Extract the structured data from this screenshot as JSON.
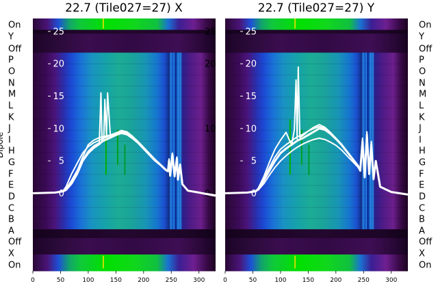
{
  "chart_data": [
    {
      "type": "heatmap",
      "title": "22.7 (Tile027=27) X",
      "ylabel": "Dipole",
      "xlim": [
        0,
        330
      ],
      "ylim": [
        -12,
        27
      ],
      "row_labels": [
        "On",
        "Y",
        "Off",
        "P",
        "O",
        "N",
        "M",
        "L",
        "K",
        "J",
        "I",
        "H",
        "G",
        "F",
        "E",
        "D",
        "C",
        "B",
        "A",
        "Off",
        "X",
        "On"
      ],
      "x_ticks": [
        0,
        50,
        100,
        150,
        200,
        250,
        300
      ],
      "y_ticks": [
        0,
        5,
        10,
        15,
        20,
        25
      ],
      "lines": [
        {
          "x": [
            0,
            40,
            55,
            60,
            70,
            80,
            90,
            100,
            110,
            120,
            125,
            130,
            140,
            150,
            160,
            170,
            180,
            190,
            200,
            210,
            220,
            230,
            240,
            244,
            246,
            248,
            252,
            256,
            260,
            262,
            266,
            270,
            280,
            300,
            330
          ],
          "y": [
            0,
            0.1,
            0.3,
            0.5,
            1.5,
            3,
            5,
            6.2,
            7,
            7.6,
            8,
            8.2,
            8.6,
            9,
            9.3,
            9.1,
            8.5,
            7.8,
            6.9,
            6,
            5.1,
            4.4,
            3.6,
            3.4,
            5,
            2.7,
            6,
            2.6,
            5.4,
            2.1,
            4.4,
            1.4,
            0.4,
            0.1,
            -0.4
          ]
        },
        {
          "x": [
            0,
            40,
            55,
            60,
            70,
            80,
            90,
            100,
            110,
            120,
            123,
            125,
            128,
            130,
            133,
            135,
            140,
            150,
            160,
            170,
            180,
            190,
            200,
            210,
            220,
            230,
            240,
            244,
            246,
            248,
            252,
            256,
            260,
            262,
            266,
            270,
            280,
            300,
            330
          ],
          "y": [
            0,
            0.1,
            0.3,
            0.7,
            2,
            3.5,
            5.2,
            6.5,
            7.3,
            7.8,
            15.5,
            8,
            8.2,
            14.5,
            8.6,
            15.5,
            8.8,
            9.1,
            9.5,
            9.3,
            8.6,
            7.9,
            7,
            6.1,
            5.2,
            4.4,
            3.6,
            3.4,
            5.3,
            2.8,
            6.2,
            2.6,
            5.6,
            2.1,
            4.5,
            1.4,
            0.4,
            0.1,
            -0.3
          ]
        },
        {
          "x": [
            0,
            40,
            55,
            60,
            70,
            80,
            90,
            100,
            110,
            120,
            125,
            130,
            140,
            150,
            160,
            170,
            180,
            190,
            200,
            210,
            220,
            230,
            240,
            244,
            246,
            248,
            252,
            256,
            260,
            262,
            266,
            270,
            280,
            300,
            330
          ],
          "y": [
            0,
            0.1,
            0.4,
            1,
            3,
            4.6,
            6.2,
            7.2,
            7.8,
            8.2,
            8.4,
            8.6,
            8.9,
            9.3,
            9.7,
            9.5,
            8.8,
            8,
            7.1,
            6.2,
            5.3,
            4.5,
            3.7,
            3.4,
            5.2,
            2.8,
            6,
            2.6,
            5.5,
            2.1,
            4.5,
            1.4,
            0.4,
            0.1,
            -0.3
          ]
        },
        {
          "x": [
            0,
            40,
            55,
            60,
            70,
            80,
            90,
            100,
            110,
            120,
            125,
            130,
            140,
            150,
            160,
            170,
            180,
            190,
            200,
            210,
            220,
            230,
            240,
            244,
            246,
            248,
            252,
            256,
            260,
            262,
            266,
            270,
            280,
            300,
            330
          ],
          "y": [
            0,
            0.1,
            0.3,
            0.6,
            1.8,
            3.4,
            5.6,
            7.5,
            8.2,
            8.6,
            8.7,
            8.8,
            9,
            9.3,
            9.6,
            9.4,
            8.7,
            7.9,
            7,
            6.1,
            5.2,
            4.4,
            3.6,
            3.4,
            5.1,
            2.7,
            6.1,
            2.6,
            5.4,
            2.1,
            4.5,
            1.4,
            0.4,
            0.1,
            -0.3
          ]
        }
      ]
    },
    {
      "type": "heatmap",
      "title": "22.7 (Tile027=27) Y",
      "xlim": [
        0,
        330
      ],
      "ylim": [
        -12,
        27
      ],
      "row_labels": [
        "On",
        "Y",
        "Off",
        "P",
        "O",
        "N",
        "M",
        "L",
        "K",
        "J",
        "I",
        "H",
        "G",
        "F",
        "E",
        "D",
        "C",
        "B",
        "A",
        "Off",
        "X",
        "On"
      ],
      "x_ticks": [
        0,
        50,
        100,
        150,
        200,
        250,
        300
      ],
      "y_ticks": [
        0,
        5,
        10,
        15,
        20,
        25
      ],
      "lines": [
        {
          "x": [
            0,
            40,
            55,
            60,
            70,
            80,
            90,
            100,
            110,
            120,
            125,
            130,
            140,
            150,
            160,
            170,
            180,
            190,
            200,
            210,
            220,
            230,
            240,
            244,
            248,
            252,
            256,
            260,
            264,
            268,
            272,
            280,
            300,
            330
          ],
          "y": [
            0,
            0.1,
            0.3,
            0.6,
            2,
            3.5,
            5,
            6.2,
            6.9,
            7.5,
            7.8,
            8.1,
            8.5,
            9,
            9.5,
            10,
            9.8,
            9.2,
            8.4,
            7.5,
            6.4,
            5.3,
            4.2,
            3.5,
            8,
            2.5,
            9,
            3,
            7.5,
            2.2,
            5,
            1,
            0.2,
            -0.2
          ]
        },
        {
          "x": [
            0,
            40,
            55,
            60,
            70,
            80,
            90,
            100,
            110,
            120,
            125,
            128,
            130,
            132,
            135,
            140,
            150,
            160,
            170,
            180,
            190,
            200,
            210,
            220,
            230,
            240,
            244,
            248,
            252,
            256,
            260,
            264,
            268,
            272,
            280,
            300,
            330
          ],
          "y": [
            0,
            0.1,
            0.3,
            0.8,
            2.6,
            4.8,
            6.8,
            8.2,
            9.4,
            7.4,
            9.8,
            17.5,
            8.4,
            19.5,
            8.6,
            8.9,
            9.6,
            10.2,
            10.6,
            10.2,
            9.4,
            8.5,
            7.6,
            6.5,
            5.4,
            4.3,
            3.5,
            8.5,
            2.6,
            9.5,
            3.2,
            8,
            2.2,
            5,
            1,
            0.2,
            -0.2
          ]
        },
        {
          "x": [
            0,
            40,
            55,
            60,
            70,
            80,
            90,
            100,
            110,
            120,
            125,
            130,
            140,
            150,
            160,
            170,
            180,
            190,
            200,
            210,
            220,
            230,
            240,
            244,
            248,
            252,
            256,
            260,
            264,
            268,
            272,
            280,
            300,
            330
          ],
          "y": [
            0,
            0.1,
            0.3,
            0.5,
            1.5,
            2.8,
            4,
            5,
            5.8,
            6.5,
            6.8,
            7.1,
            7.6,
            8,
            8.3,
            8.5,
            8.3,
            7.9,
            7.4,
            6.7,
            5.8,
            4.9,
            4,
            3.4,
            7.5,
            2.4,
            8.5,
            2.9,
            7,
            2.1,
            4.8,
            1,
            0.2,
            -0.2
          ]
        },
        {
          "x": [
            0,
            40,
            55,
            60,
            70,
            80,
            90,
            100,
            110,
            120,
            125,
            130,
            140,
            150,
            160,
            170,
            180,
            190,
            200,
            210,
            220,
            230,
            240,
            244,
            248,
            252,
            256,
            260,
            264,
            268,
            272,
            280,
            300,
            330
          ],
          "y": [
            0,
            0.1,
            0.3,
            0.7,
            2.3,
            4,
            5.6,
            6.8,
            7.5,
            8.1,
            8.4,
            8.7,
            9.1,
            9.6,
            10,
            10.3,
            10,
            9.3,
            8.5,
            7.6,
            6.5,
            5.4,
            4.3,
            3.5,
            8.2,
            2.5,
            9.2,
            3.1,
            7.7,
            2.2,
            5,
            1,
            0.2,
            -0.2
          ]
        }
      ]
    }
  ]
}
